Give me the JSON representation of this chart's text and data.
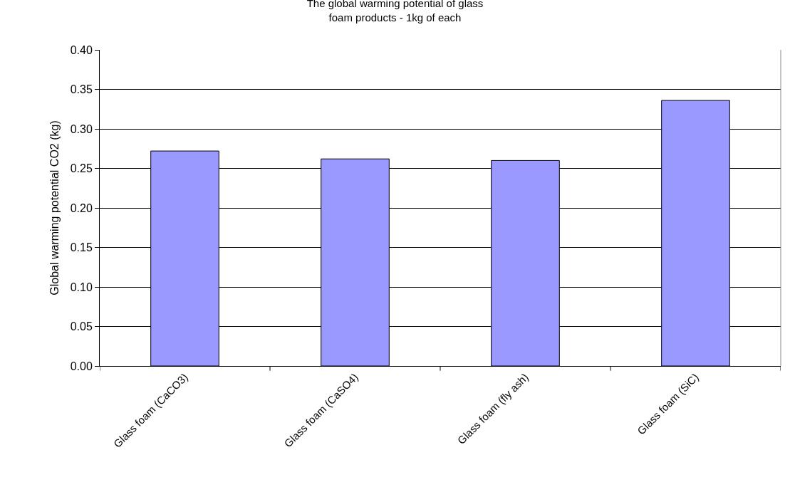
{
  "chart_data": {
    "type": "bar",
    "title": "The global warming potential of glass\nfoam products - 1kg of each",
    "ylabel": "Global warming potential CO2 (kg)",
    "categories": [
      "Glass foam (CaCO3)",
      "Glass foam (CaSO4)",
      "Glass foam (fly ash)",
      "Glass foam (SiC)"
    ],
    "values": [
      0.272,
      0.262,
      0.26,
      0.336
    ],
    "color": "#9999ff",
    "ylim": [
      0,
      0.4
    ],
    "yticks": [
      {
        "value": 0,
        "label": "0.00"
      },
      {
        "value": 0.05,
        "label": "0.05"
      },
      {
        "value": 0.1,
        "label": "0.10"
      },
      {
        "value": 0.15,
        "label": "0.15"
      },
      {
        "value": 0.2,
        "label": "0.20"
      },
      {
        "value": 0.25,
        "label": "0.25"
      },
      {
        "value": 0.3,
        "label": "0.30"
      },
      {
        "value": 0.35,
        "label": "0.35"
      },
      {
        "value": 0.4,
        "label": "0.40"
      }
    ],
    "grid": "y",
    "legend": false
  }
}
